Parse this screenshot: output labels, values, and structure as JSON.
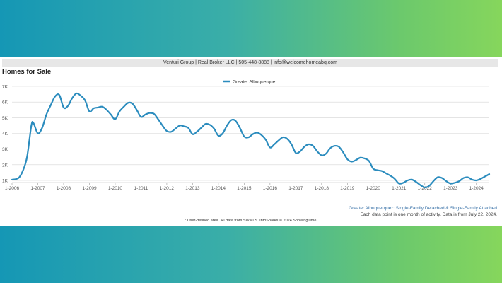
{
  "header": {
    "contact_line": "Venturi Group | Real Broker LLC | 505-448-8888 | info@welcomehomeabq.com"
  },
  "chart_data": {
    "type": "line",
    "title": "Homes for Sale",
    "xlabel": "",
    "ylabel": "",
    "y_ticks": [
      "1K",
      "2K",
      "3K",
      "4K",
      "5K",
      "6K",
      "7K"
    ],
    "x_ticks": [
      "1-2006",
      "1-2007",
      "1-2008",
      "1-2009",
      "1-2010",
      "1-2011",
      "1-2012",
      "1-2013",
      "1-2014",
      "1-2015",
      "1-2016",
      "1-2017",
      "1-2018",
      "1-2019",
      "1-2020",
      "1-2021",
      "1-2022",
      "1-2023",
      "1-2024"
    ],
    "ylim": [
      1000,
      7000
    ],
    "xlim": [
      "2006-01",
      "2024-07"
    ],
    "grid": true,
    "legend_position": "top-center",
    "series": [
      {
        "name": "Greater Albuquerque",
        "color": "#2b8cbe",
        "points": [
          [
            "2006-01",
            1050
          ],
          [
            "2006-04",
            1150
          ],
          [
            "2006-06",
            1600
          ],
          [
            "2006-08",
            2500
          ],
          [
            "2006-10",
            4500
          ],
          [
            "2006-11",
            4650
          ],
          [
            "2007-01",
            4000
          ],
          [
            "2007-03",
            4350
          ],
          [
            "2007-05",
            5200
          ],
          [
            "2007-07",
            5800
          ],
          [
            "2007-09",
            6350
          ],
          [
            "2007-11",
            6450
          ],
          [
            "2008-01",
            5650
          ],
          [
            "2008-03",
            5750
          ],
          [
            "2008-05",
            6250
          ],
          [
            "2008-07",
            6550
          ],
          [
            "2008-09",
            6400
          ],
          [
            "2008-11",
            6100
          ],
          [
            "2009-01",
            5400
          ],
          [
            "2009-03",
            5600
          ],
          [
            "2009-05",
            5650
          ],
          [
            "2009-07",
            5700
          ],
          [
            "2009-09",
            5500
          ],
          [
            "2009-11",
            5200
          ],
          [
            "2010-01",
            4900
          ],
          [
            "2010-03",
            5400
          ],
          [
            "2010-05",
            5700
          ],
          [
            "2010-07",
            5950
          ],
          [
            "2010-09",
            5900
          ],
          [
            "2010-11",
            5500
          ],
          [
            "2011-01",
            5050
          ],
          [
            "2011-03",
            5200
          ],
          [
            "2011-05",
            5300
          ],
          [
            "2011-07",
            5250
          ],
          [
            "2011-09",
            4900
          ],
          [
            "2011-11",
            4500
          ],
          [
            "2012-01",
            4150
          ],
          [
            "2012-03",
            4100
          ],
          [
            "2012-05",
            4300
          ],
          [
            "2012-07",
            4500
          ],
          [
            "2012-09",
            4450
          ],
          [
            "2012-11",
            4350
          ],
          [
            "2013-01",
            3950
          ],
          [
            "2013-03",
            4100
          ],
          [
            "2013-05",
            4350
          ],
          [
            "2013-07",
            4600
          ],
          [
            "2013-09",
            4550
          ],
          [
            "2013-11",
            4300
          ],
          [
            "2014-01",
            3850
          ],
          [
            "2014-03",
            4000
          ],
          [
            "2014-05",
            4500
          ],
          [
            "2014-07",
            4850
          ],
          [
            "2014-09",
            4800
          ],
          [
            "2014-11",
            4350
          ],
          [
            "2015-01",
            3800
          ],
          [
            "2015-03",
            3750
          ],
          [
            "2015-05",
            3950
          ],
          [
            "2015-07",
            4050
          ],
          [
            "2015-09",
            3900
          ],
          [
            "2015-11",
            3600
          ],
          [
            "2016-01",
            3100
          ],
          [
            "2016-03",
            3300
          ],
          [
            "2016-05",
            3550
          ],
          [
            "2016-07",
            3750
          ],
          [
            "2016-09",
            3650
          ],
          [
            "2016-11",
            3300
          ],
          [
            "2017-01",
            2750
          ],
          [
            "2017-03",
            2850
          ],
          [
            "2017-05",
            3150
          ],
          [
            "2017-07",
            3300
          ],
          [
            "2017-09",
            3200
          ],
          [
            "2017-11",
            2850
          ],
          [
            "2018-01",
            2600
          ],
          [
            "2018-03",
            2700
          ],
          [
            "2018-05",
            3050
          ],
          [
            "2018-07",
            3200
          ],
          [
            "2018-09",
            3150
          ],
          [
            "2018-11",
            2800
          ],
          [
            "2019-01",
            2350
          ],
          [
            "2019-03",
            2200
          ],
          [
            "2019-05",
            2300
          ],
          [
            "2019-07",
            2450
          ],
          [
            "2019-09",
            2400
          ],
          [
            "2019-11",
            2250
          ],
          [
            "2020-01",
            1750
          ],
          [
            "2020-03",
            1650
          ],
          [
            "2020-05",
            1600
          ],
          [
            "2020-07",
            1450
          ],
          [
            "2020-09",
            1300
          ],
          [
            "2020-11",
            1100
          ],
          [
            "2021-01",
            800
          ],
          [
            "2021-03",
            850
          ],
          [
            "2021-05",
            1000
          ],
          [
            "2021-07",
            1050
          ],
          [
            "2021-09",
            900
          ],
          [
            "2021-11",
            700
          ],
          [
            "2022-01",
            550
          ],
          [
            "2022-03",
            650
          ],
          [
            "2022-05",
            950
          ],
          [
            "2022-07",
            1200
          ],
          [
            "2022-09",
            1150
          ],
          [
            "2022-11",
            950
          ],
          [
            "2023-01",
            800
          ],
          [
            "2023-03",
            850
          ],
          [
            "2023-05",
            950
          ],
          [
            "2023-07",
            1150
          ],
          [
            "2023-09",
            1200
          ],
          [
            "2023-11",
            1050
          ],
          [
            "2024-01",
            1000
          ],
          [
            "2024-03",
            1100
          ],
          [
            "2024-05",
            1250
          ],
          [
            "2024-07",
            1400
          ]
        ]
      }
    ]
  },
  "notes": {
    "area": "Greater Albuquerque*: Single-Family Detached & Single-Family Attached",
    "activity": "Each data point is one month of activity. Data is from July 22, 2024.",
    "footer": "* User-defined area. All data from SWMLS. InfoSparks © 2024 ShowingTime."
  }
}
